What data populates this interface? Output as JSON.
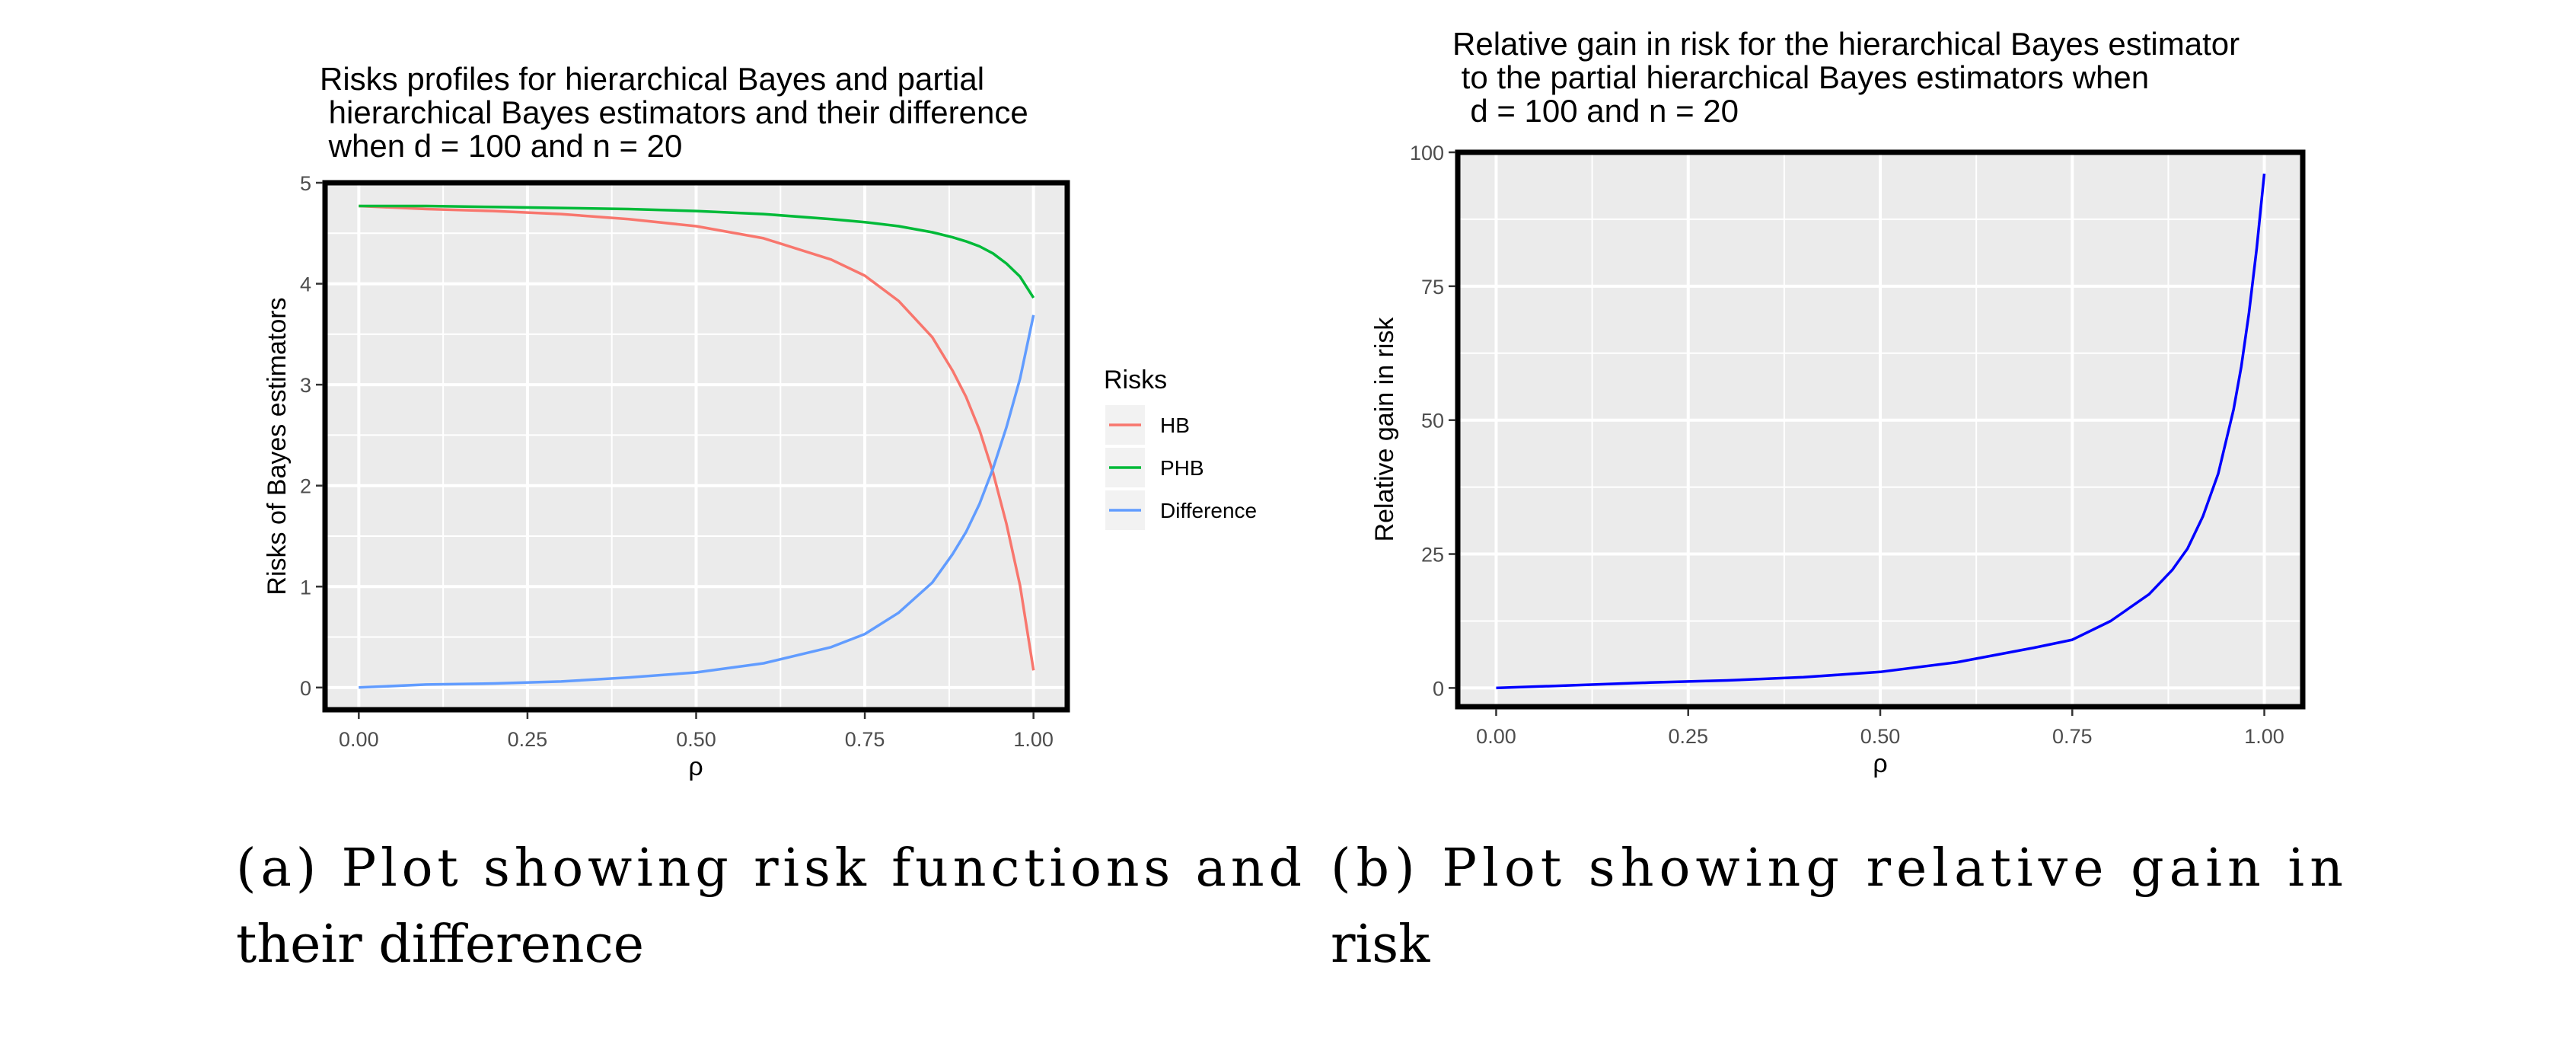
{
  "chart_data": [
    {
      "type": "line",
      "title": [
        "Risks profiles for hierarchical Bayes and partial",
        " hierarchical Bayes estimators and their difference",
        " when d = 100 and n = 20"
      ],
      "xlabel": "ρ",
      "ylabel": "Risks of Bayes estimators",
      "xlim": [
        -0.05,
        1.05
      ],
      "ylim": [
        -0.22,
        5
      ],
      "xticks": [
        0,
        0.25,
        0.5,
        0.75,
        1
      ],
      "xtick_labels": [
        "0.00",
        "0.25",
        "0.50",
        "0.75",
        "1.00"
      ],
      "yticks": [
        0,
        1,
        2,
        3,
        4,
        5
      ],
      "ytick_labels": [
        "0",
        "1",
        "2",
        "3",
        "4",
        "5"
      ],
      "grid": true,
      "legend_title": "Risks",
      "legend_position": "right",
      "series": [
        {
          "name": "HB",
          "color": "#F8766D",
          "x": [
            0,
            0.1,
            0.2,
            0.3,
            0.4,
            0.5,
            0.6,
            0.7,
            0.75,
            0.8,
            0.85,
            0.88,
            0.9,
            0.92,
            0.94,
            0.96,
            0.98,
            1.0
          ],
          "y": [
            4.77,
            4.74,
            4.72,
            4.69,
            4.64,
            4.57,
            4.45,
            4.24,
            4.08,
            3.83,
            3.47,
            3.14,
            2.88,
            2.55,
            2.13,
            1.62,
            1.01,
            0.17
          ]
        },
        {
          "name": "PHB",
          "color": "#00BA38",
          "x": [
            0,
            0.1,
            0.2,
            0.3,
            0.4,
            0.5,
            0.6,
            0.7,
            0.75,
            0.8,
            0.85,
            0.88,
            0.9,
            0.92,
            0.94,
            0.96,
            0.98,
            1.0
          ],
          "y": [
            4.77,
            4.77,
            4.76,
            4.75,
            4.74,
            4.72,
            4.69,
            4.64,
            4.61,
            4.57,
            4.51,
            4.46,
            4.42,
            4.37,
            4.3,
            4.2,
            4.07,
            3.86
          ]
        },
        {
          "name": "Difference",
          "color": "#619CFF",
          "x": [
            0,
            0.1,
            0.2,
            0.3,
            0.4,
            0.5,
            0.6,
            0.7,
            0.75,
            0.8,
            0.85,
            0.88,
            0.9,
            0.92,
            0.94,
            0.96,
            0.98,
            1.0
          ],
          "y": [
            0.0,
            0.03,
            0.04,
            0.06,
            0.1,
            0.15,
            0.24,
            0.4,
            0.53,
            0.74,
            1.04,
            1.32,
            1.54,
            1.82,
            2.17,
            2.58,
            3.06,
            3.69
          ]
        }
      ]
    },
    {
      "type": "line",
      "title": [
        "Relative gain in risk for the hierarchical Bayes estimator",
        " to the partial hierarchical Bayes estimators when",
        "  d = 100 and n = 20"
      ],
      "xlabel": "ρ",
      "ylabel": "Relative gain in risk",
      "xlim": [
        -0.05,
        1.05
      ],
      "ylim": [
        -3.5,
        100
      ],
      "xticks": [
        0,
        0.25,
        0.5,
        0.75,
        1
      ],
      "xtick_labels": [
        "0.00",
        "0.25",
        "0.50",
        "0.75",
        "1.00"
      ],
      "yticks": [
        0,
        25,
        50,
        75,
        100
      ],
      "ytick_labels": [
        "0",
        "25",
        "50",
        "75",
        "100"
      ],
      "grid": true,
      "series": [
        {
          "color": "#0000FF",
          "x": [
            0,
            0.1,
            0.2,
            0.3,
            0.4,
            0.5,
            0.6,
            0.7,
            0.75,
            0.8,
            0.85,
            0.88,
            0.9,
            0.92,
            0.94,
            0.96,
            0.97,
            0.98,
            0.99,
            1.0
          ],
          "y": [
            0.0,
            0.5,
            1.0,
            1.4,
            2.0,
            3.0,
            4.8,
            7.5,
            9.0,
            12.5,
            17.5,
            22.0,
            26.0,
            32.0,
            40.0,
            52.0,
            60.0,
            70.0,
            82.0,
            96.0
          ]
        }
      ]
    }
  ],
  "captions": {
    "a": [
      "(a) Plot showing risk functions and",
      "their difference"
    ],
    "b": [
      "(b) Plot showing relative gain in",
      "risk"
    ]
  }
}
